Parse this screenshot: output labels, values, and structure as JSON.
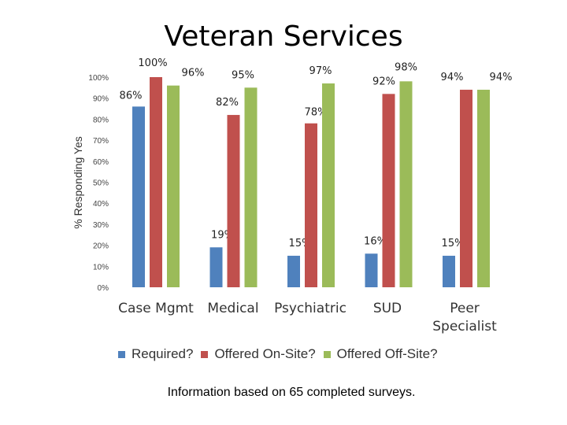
{
  "title": "Veteran Services",
  "footnote": "Information based on 65 completed surveys.",
  "colors": {
    "required": "#4F81BD",
    "onsite": "#C0504D",
    "offsite": "#9BBB59"
  },
  "chart_data": {
    "type": "bar",
    "title": "Veteran Services",
    "xlabel": "",
    "ylabel": "% Responding Yes",
    "ylim": [
      0,
      100
    ],
    "yticks": [
      "0%",
      "10%",
      "20%",
      "30%",
      "40%",
      "50%",
      "60%",
      "70%",
      "80%",
      "90%",
      "100%"
    ],
    "grid": false,
    "legend": "bottom",
    "categories": [
      "Case Mgmt",
      "Medical",
      "Psychiatric",
      "SUD",
      "Peer Specialist"
    ],
    "series": [
      {
        "name": "Required?",
        "values": [
          86,
          19,
          15,
          16,
          15
        ],
        "labels": [
          "86%",
          "19%",
          "15%",
          "16%",
          "15%"
        ]
      },
      {
        "name": "Offered On-Site?",
        "values": [
          100,
          82,
          78,
          92,
          94
        ],
        "labels": [
          "100%",
          "82%",
          "78%",
          "92%",
          "94%"
        ]
      },
      {
        "name": "Offered Off-Site?",
        "values": [
          96,
          95,
          97,
          98,
          94
        ],
        "labels": [
          "96%",
          "95%",
          "97%",
          "98%",
          "94%"
        ]
      }
    ]
  }
}
